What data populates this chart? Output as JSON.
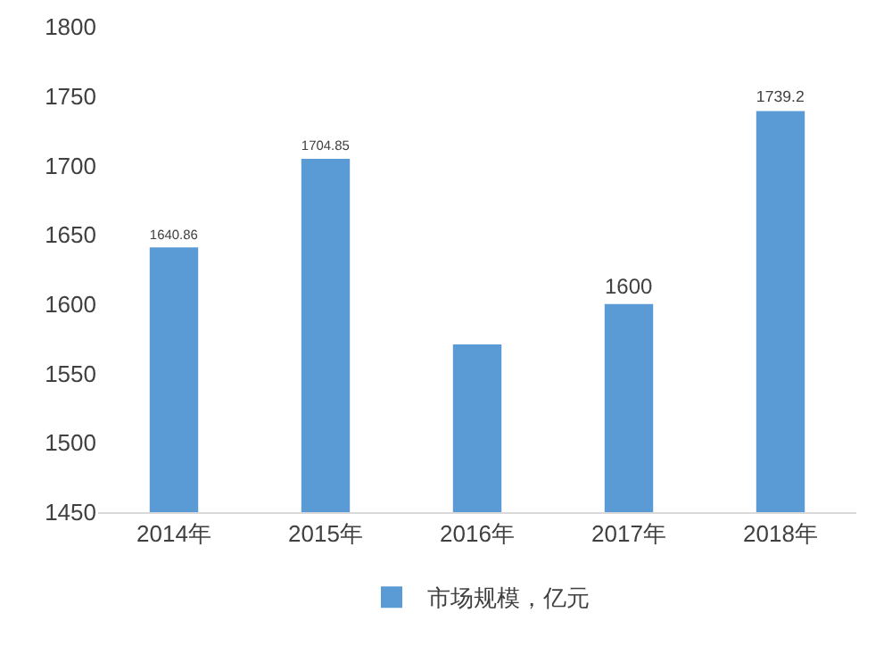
{
  "chart_data": {
    "type": "bar",
    "categories": [
      "2014年",
      "2015年",
      "2016年",
      "2017年",
      "2018年"
    ],
    "series": [
      {
        "name": "市场规模，亿元",
        "color": "#5b9bd5",
        "values": [
          1640.86,
          1704.85,
          1571,
          1600,
          1739.2
        ],
        "value_labels": [
          "1640.86",
          "1704.85",
          null,
          "1600",
          "1739.2"
        ]
      }
    ],
    "ylim": [
      1450,
      1800
    ],
    "yticks": [
      1450,
      1500,
      1550,
      1600,
      1650,
      1700,
      1750,
      1800
    ],
    "grid": false,
    "legend": "bottom"
  }
}
